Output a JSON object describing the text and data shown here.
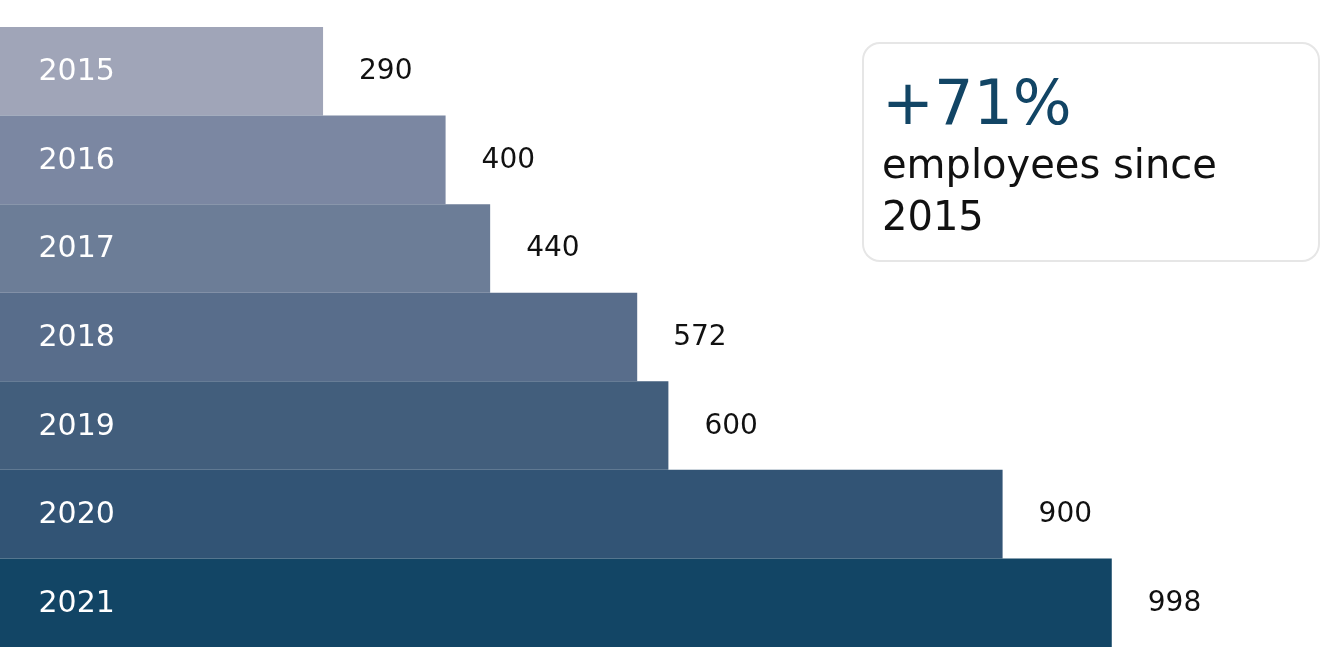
{
  "chart_data": {
    "type": "bar",
    "orientation": "horizontal",
    "categories": [
      "2015",
      "2016",
      "2017",
      "2018",
      "2019",
      "2020",
      "2021"
    ],
    "values": [
      290,
      400,
      440,
      572,
      600,
      900,
      998
    ],
    "colors": [
      "#a0a5b8",
      "#7b87a2",
      "#6c7d97",
      "#586d8b",
      "#425e7c",
      "#325475",
      "#124565"
    ],
    "data_labels": true,
    "tick_labels": "y",
    "annotations": [
      "+71%",
      "employees since 2015"
    ]
  }
}
